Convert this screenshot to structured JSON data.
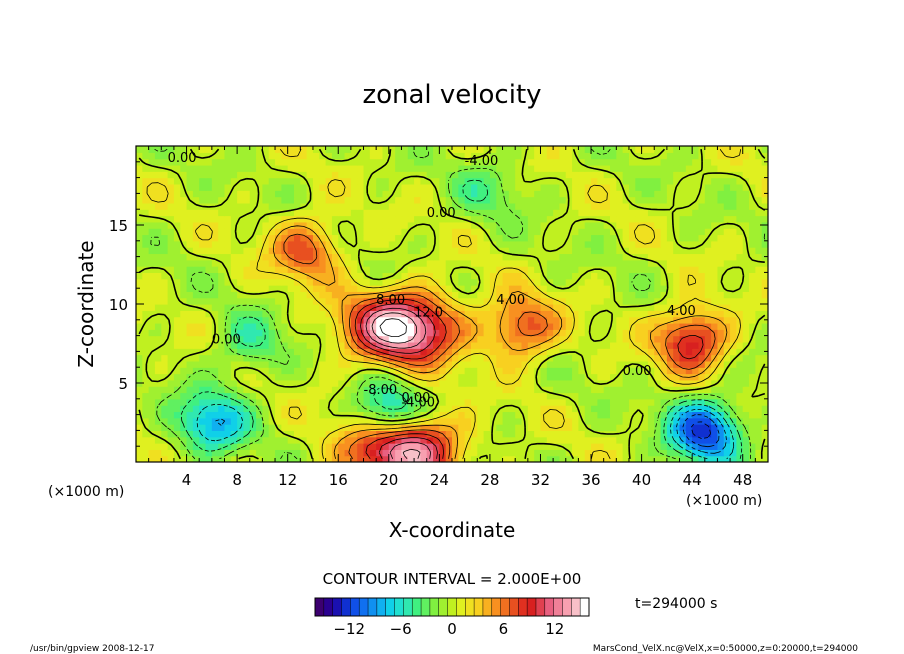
{
  "chart_data": {
    "type": "heatmap",
    "title": "zonal velocity",
    "xlabel": "X-coordinate",
    "ylabel": "Z-coordinate",
    "x_unit_left": "(×1000 m)",
    "x_unit_right": "(×1000 m)",
    "xlim": [
      0,
      50
    ],
    "ylim": [
      0,
      20
    ],
    "x_ticks": [
      4,
      8,
      12,
      16,
      20,
      24,
      28,
      32,
      36,
      40,
      44,
      48
    ],
    "y_ticks": [
      5,
      10,
      15
    ],
    "contour_interval_label": "CONTOUR INTERVAL = 2.000E+00",
    "time_label": "t=294000 s",
    "colorbar": {
      "min": -16,
      "max": 16,
      "ticks": [
        -12,
        -6,
        0,
        6,
        12
      ],
      "colors": [
        "#3c0070",
        "#2a0090",
        "#1a10b0",
        "#1030d0",
        "#1050e8",
        "#1070f0",
        "#1090f0",
        "#10b0f0",
        "#10d0e8",
        "#20e0d0",
        "#30e8b0",
        "#40f080",
        "#60f060",
        "#80f040",
        "#a0f030",
        "#c0f020",
        "#e0f020",
        "#f0e020",
        "#f8d020",
        "#f8b020",
        "#f89020",
        "#f07020",
        "#e85020",
        "#e03020",
        "#d82020",
        "#e04050",
        "#e86080",
        "#f08098",
        "#f8a0b0",
        "#f8c0c8",
        "#ffffff"
      ]
    },
    "features": [
      {
        "x": 21,
        "z": 8.5,
        "value": 16,
        "kind": "max",
        "labels": [
          "8.00",
          "12.0"
        ]
      },
      {
        "x": 21,
        "z": 1.0,
        "value": 16,
        "kind": "max",
        "labels": []
      },
      {
        "x": 44,
        "z": 7.8,
        "value": 10,
        "kind": "max",
        "labels": [
          "4.00"
        ]
      },
      {
        "x": 13.5,
        "z": 13.5,
        "value": 7,
        "kind": "max",
        "labels": []
      },
      {
        "x": 30.5,
        "z": 8.5,
        "value": 8,
        "kind": "max",
        "labels": [
          "4.00"
        ]
      },
      {
        "x": 20,
        "z": 2.8,
        "value": -10,
        "kind": "min",
        "labels": [
          "-8.00",
          "-4.00"
        ]
      },
      {
        "x": 45,
        "z": 2.0,
        "value": -12,
        "kind": "min",
        "labels": []
      },
      {
        "x": 6,
        "z": 2.5,
        "value": -8,
        "kind": "min",
        "labels": []
      },
      {
        "x": 9,
        "z": 7.5,
        "value": -4,
        "kind": "min",
        "labels": []
      },
      {
        "x": 28,
        "z": 17.3,
        "value": -3,
        "kind": "min",
        "labels": [
          "-4.00"
        ]
      }
    ],
    "contour_labels": [
      "0.00",
      "-4.00",
      "0.00",
      "8.00",
      "12.0",
      "0.00",
      "4.00",
      "0.00",
      "0.00",
      "-4.00",
      "-8.00",
      "0.00",
      "4.00"
    ]
  },
  "footer": {
    "left": "/usr/bin/gpview   2008-12-17",
    "right": "MarsCond_VelX.nc@VelX,x=0:50000,z=0:20000,t=294000"
  }
}
